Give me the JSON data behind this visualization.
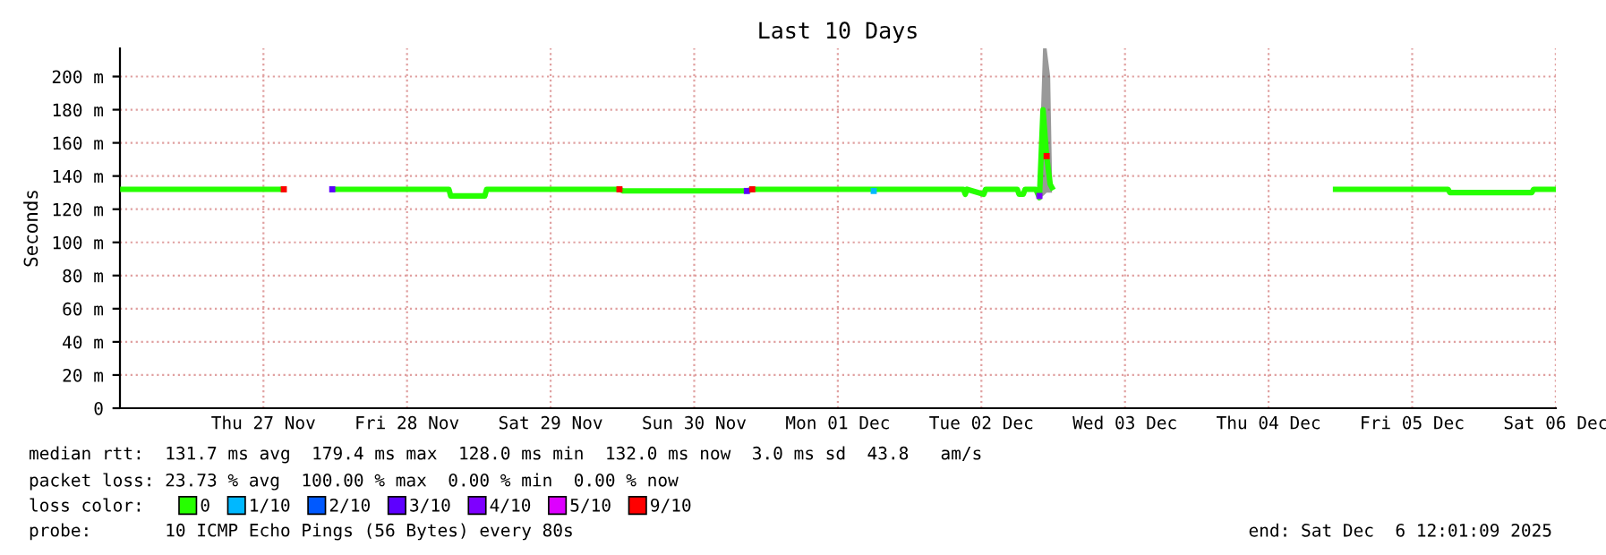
{
  "chart_data": {
    "type": "line",
    "title": "Last 10 Days",
    "ylabel": "Seconds",
    "xlim": [
      "2025-11-26T12:01",
      "2025-12-06T12:01"
    ],
    "ylim": [
      0,
      217
    ],
    "yticks": [
      0,
      {
        "value": 20,
        "label": "20 m"
      },
      {
        "value": 40,
        "label": "40 m"
      },
      {
        "value": 60,
        "label": "60 m"
      },
      {
        "value": 80,
        "label": "80 m"
      },
      {
        "value": 100,
        "label": "100 m"
      },
      {
        "value": 120,
        "label": "120 m"
      },
      {
        "value": 140,
        "label": "140 m"
      },
      {
        "value": 160,
        "label": "160 m"
      },
      {
        "value": 180,
        "label": "180 m"
      },
      {
        "value": 200,
        "label": "200 m"
      }
    ],
    "xticks": [
      {
        "value": "2025-11-27T12:00",
        "label": "Thu 27 Nov"
      },
      {
        "value": "2025-11-28T12:00",
        "label": "Fri 28 Nov"
      },
      {
        "value": "2025-11-29T12:00",
        "label": "Sat 29 Nov"
      },
      {
        "value": "2025-11-30T12:00",
        "label": "Sun 30 Nov"
      },
      {
        "value": "2025-12-01T12:00",
        "label": "Mon 01 Dec"
      },
      {
        "value": "2025-12-02T12:00",
        "label": "Tue 02 Dec"
      },
      {
        "value": "2025-12-03T12:00",
        "label": "Wed 03 Dec"
      },
      {
        "value": "2025-12-04T12:00",
        "label": "Thu 04 Dec"
      },
      {
        "value": "2025-12-05T12:00",
        "label": "Fri 05 Dec"
      },
      {
        "value": "2025-12-06T12:00",
        "label": "Sat 06 Dec"
      }
    ],
    "grid": true,
    "legend": "bottom",
    "legend_title": "loss color:",
    "series": [
      {
        "name": "0",
        "color": "#26ff00",
        "x": [
          "2025-11-26T12:30",
          "2025-11-27T15:24",
          "2025-11-27T19:00",
          "2025-11-27T23:30",
          "2025-11-28T19:00",
          "2025-11-28T19:18",
          "2025-11-29T01:00",
          "2025-11-29T01:18",
          "2025-11-29T23:30",
          "2025-11-30T00:06",
          "2025-11-30T20:48",
          "2025-11-30T21:42",
          "2025-12-01T18:00",
          "2025-12-01T18:42",
          "2025-12-02T09:00",
          "2025-12-02T09:18",
          "2025-12-02T09:36",
          "2025-12-02T12:24",
          "2025-12-02T12:42",
          "2025-12-02T18:00",
          "2025-12-02T18:18",
          "2025-12-02T19:00",
          "2025-12-02T19:18",
          "2025-12-02T21:06",
          "2025-12-02T21:42",
          "2025-12-02T22:18",
          "2025-12-02T22:54",
          "2025-12-02T23:30",
          "2025-12-02T23:48",
          "2025-12-03T12:00",
          "2025-12-04T23:12",
          "2025-12-05T18:00",
          "2025-12-05T18:18",
          "2025-12-06T08:00",
          "2025-12-06T08:18",
          "2025-12-06T12:00"
        ],
        "values": [
          132,
          132,
          null,
          132,
          132,
          128,
          128,
          132,
          132,
          131,
          131,
          132,
          132,
          132,
          132,
          129,
          132,
          129,
          132,
          132,
          129,
          129,
          132,
          132,
          127,
          180,
          152,
          135,
          133,
          null,
          132,
          132,
          130,
          130,
          132,
          132
        ],
        "lower": [
          null,
          null,
          null,
          null,
          null,
          null,
          null,
          null,
          null,
          null,
          null,
          null,
          null,
          null,
          null,
          null,
          null,
          null,
          null,
          null,
          null,
          null,
          null,
          null,
          127,
          128,
          130,
          130,
          130,
          null,
          null,
          null,
          null,
          null,
          null,
          null
        ],
        "upper": [
          null,
          null,
          null,
          null,
          null,
          null,
          null,
          null,
          null,
          null,
          null,
          null,
          null,
          null,
          null,
          null,
          null,
          null,
          null,
          null,
          null,
          null,
          null,
          null,
          150,
          217,
          217,
          200,
          140,
          null,
          null,
          null,
          null,
          null,
          null,
          null
        ]
      },
      {
        "name": "1/10",
        "type": "scatter",
        "color": "#00b8ff",
        "x": [
          "2025-12-01T18:00"
        ],
        "values": [
          131
        ]
      },
      {
        "name": "2/10",
        "type": "scatter",
        "color": "#0059ff"
      },
      {
        "name": "3/10",
        "type": "scatter",
        "color": "#5e00ff",
        "x": [
          "2025-11-27T23:30",
          "2025-11-30T20:48"
        ],
        "values": [
          132,
          131
        ]
      },
      {
        "name": "4/10",
        "type": "scatter",
        "color": "#7e00ff",
        "x": [
          "2025-12-02T21:42"
        ],
        "values": [
          128
        ]
      },
      {
        "name": "5/10",
        "type": "scatter",
        "color": "#dd00ff"
      },
      {
        "name": "9/10",
        "type": "scatter",
        "color": "#ff0000",
        "x": [
          "2025-11-27T15:24",
          "2025-11-29T23:30",
          "2025-11-30T21:42",
          "2025-12-02T22:54"
        ],
        "values": [
          132,
          132,
          132,
          152
        ]
      }
    ],
    "annotations": [
      "median rtt:  131.7 ms avg  179.4 ms max  128.0 ms min  132.0 ms now  3.0 ms sd  43.8   am/s",
      "packet loss: 23.73 % avg  100.00 % max  0.00 % min  0.00 % now",
      "probe:       10 ICMP Echo Pings (56 Bytes) every 80s",
      "end: Sat Dec  6 12:01:09 2025"
    ]
  }
}
